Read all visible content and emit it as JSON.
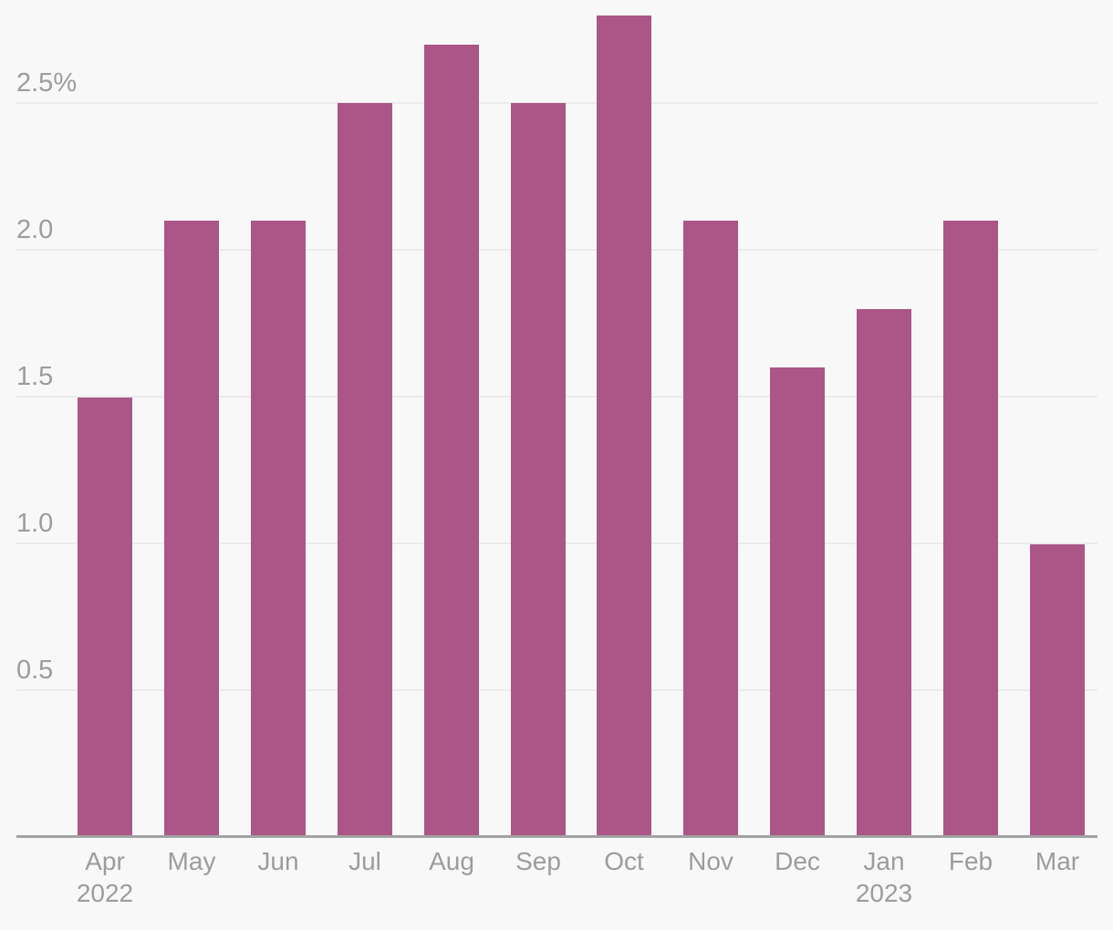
{
  "chart_data": {
    "type": "bar",
    "categories": [
      "Apr",
      "May",
      "Jun",
      "Jul",
      "Aug",
      "Sep",
      "Oct",
      "Nov",
      "Dec",
      "Jan",
      "Feb",
      "Mar"
    ],
    "year_labels": [
      {
        "index": 0,
        "text": "2022"
      },
      {
        "index": 9,
        "text": "2023"
      }
    ],
    "values": [
      1.5,
      2.1,
      2.1,
      2.5,
      2.7,
      2.5,
      2.8,
      2.1,
      1.6,
      1.8,
      2.1,
      1.0
    ],
    "series_unit": "%",
    "y_ticks": [
      {
        "value": 0.5,
        "label": "0.5"
      },
      {
        "value": 1.0,
        "label": "1.0"
      },
      {
        "value": 1.5,
        "label": "1.5"
      },
      {
        "value": 2.0,
        "label": "2.0"
      },
      {
        "value": 2.5,
        "label": "2.5%"
      }
    ],
    "title": "",
    "xlabel": "",
    "ylabel": "",
    "ylim": [
      0,
      2.85
    ],
    "grid": true,
    "legend": false
  },
  "colors": {
    "bar": "#ab5687",
    "background": "#f8f8f8",
    "gridline": "#ebebeb",
    "axis_line": "#a2a2a2",
    "label": "#9c9c9c"
  }
}
